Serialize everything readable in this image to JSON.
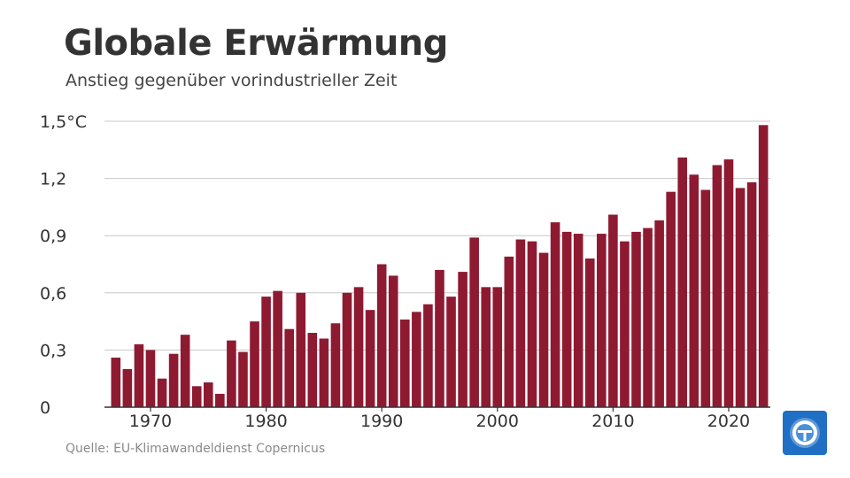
{
  "header": {
    "title": "Globale Erwärmung",
    "subtitle": "Anstieg gegenüber vorindustrieller Zeit"
  },
  "footer": {
    "source": "Quelle: EU-Klimawandeldienst Copernicus"
  },
  "logo": {
    "icon": "tagesschau-logo-icon"
  },
  "colors": {
    "bar": "#8e1a32",
    "grid": "#c8c8c8",
    "axis": "#333333",
    "logo_bg": "#1f6fc4"
  },
  "chart_data": {
    "type": "bar",
    "title": "Globale Erwärmung",
    "subtitle": "Anstieg gegenüber vorindustrieller Zeit",
    "xlabel": "",
    "ylabel": "",
    "ylim": [
      0,
      1.5
    ],
    "y_ticks": [
      {
        "value": 0,
        "label": "0"
      },
      {
        "value": 0.3,
        "label": "0,3"
      },
      {
        "value": 0.6,
        "label": "0,6"
      },
      {
        "value": 0.9,
        "label": "0,9"
      },
      {
        "value": 1.2,
        "label": "1,2"
      },
      {
        "value": 1.5,
        "label": "1,5°C"
      }
    ],
    "x_ticks": [
      {
        "value": 1970,
        "label": "1970"
      },
      {
        "value": 1980,
        "label": "1980"
      },
      {
        "value": 1990,
        "label": "1990"
      },
      {
        "value": 2000,
        "label": "2000"
      },
      {
        "value": 2010,
        "label": "2010"
      },
      {
        "value": 2020,
        "label": "2020"
      }
    ],
    "grid": true,
    "categories": [
      1967,
      1968,
      1969,
      1970,
      1971,
      1972,
      1973,
      1974,
      1975,
      1976,
      1977,
      1978,
      1979,
      1980,
      1981,
      1982,
      1983,
      1984,
      1985,
      1986,
      1987,
      1988,
      1989,
      1990,
      1991,
      1992,
      1993,
      1994,
      1995,
      1996,
      1997,
      1998,
      1999,
      2000,
      2001,
      2002,
      2003,
      2004,
      2005,
      2006,
      2007,
      2008,
      2009,
      2010,
      2011,
      2012,
      2013,
      2014,
      2015,
      2016,
      2017,
      2018,
      2019,
      2020,
      2021,
      2022,
      2023
    ],
    "values": [
      0.26,
      0.2,
      0.33,
      0.3,
      0.15,
      0.28,
      0.38,
      0.11,
      0.13,
      0.07,
      0.35,
      0.29,
      0.45,
      0.58,
      0.61,
      0.41,
      0.6,
      0.39,
      0.36,
      0.44,
      0.6,
      0.63,
      0.51,
      0.75,
      0.69,
      0.46,
      0.5,
      0.54,
      0.72,
      0.58,
      0.71,
      0.89,
      0.63,
      0.63,
      0.79,
      0.88,
      0.87,
      0.81,
      0.97,
      0.92,
      0.91,
      0.78,
      0.91,
      1.01,
      0.87,
      0.92,
      0.94,
      0.98,
      1.13,
      1.31,
      1.22,
      1.14,
      1.27,
      1.3,
      1.15,
      1.18,
      1.48
    ]
  }
}
